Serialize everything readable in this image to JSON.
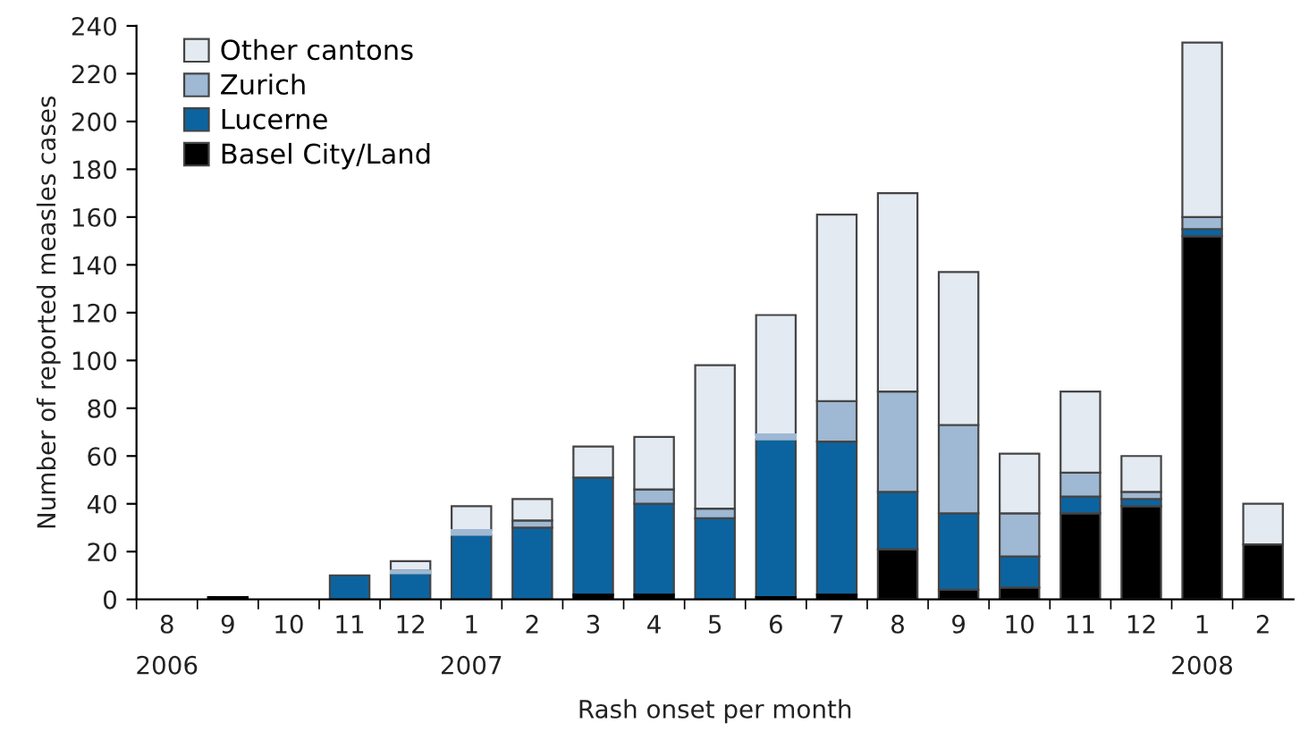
{
  "chart_data": {
    "type": "bar",
    "stacked": true,
    "xlabel": "Rash onset per month",
    "ylabel": "Number of reported measles cases",
    "categories": [
      "8\n2006",
      "9",
      "10",
      "11",
      "12",
      "1\n2007",
      "2",
      "3",
      "4",
      "5",
      "6",
      "7",
      "8",
      "9",
      "10",
      "11",
      "12",
      "1\n2008",
      "2"
    ],
    "series": [
      {
        "name": "Basel City/Land",
        "color": "#000000",
        "values": [
          0,
          1,
          0,
          0,
          0,
          0,
          0,
          2,
          2,
          0,
          1,
          2,
          21,
          4,
          5,
          36,
          39,
          152,
          23
        ]
      },
      {
        "name": "Lucerne",
        "color": "#0b64a0",
        "values": [
          0,
          0,
          0,
          10,
          11,
          27,
          30,
          49,
          38,
          34,
          66,
          64,
          24,
          32,
          13,
          7,
          3,
          3,
          0
        ]
      },
      {
        "name": "Zurich",
        "color": "#9fb8d3",
        "values": [
          0,
          0,
          0,
          0,
          1,
          2,
          3,
          0,
          6,
          4,
          2,
          17,
          42,
          37,
          18,
          10,
          3,
          5,
          0
        ]
      },
      {
        "name": "Other cantons",
        "color": "#e4eaf2",
        "values": [
          0,
          0,
          0,
          0,
          4,
          10,
          9,
          13,
          22,
          60,
          50,
          78,
          83,
          64,
          25,
          34,
          15,
          73,
          17
        ]
      }
    ],
    "ylim": [
      0,
      240
    ],
    "yticks": [
      0,
      20,
      40,
      60,
      80,
      100,
      120,
      140,
      160,
      180,
      200,
      220,
      240
    ],
    "grid": false,
    "legend": "top left"
  }
}
